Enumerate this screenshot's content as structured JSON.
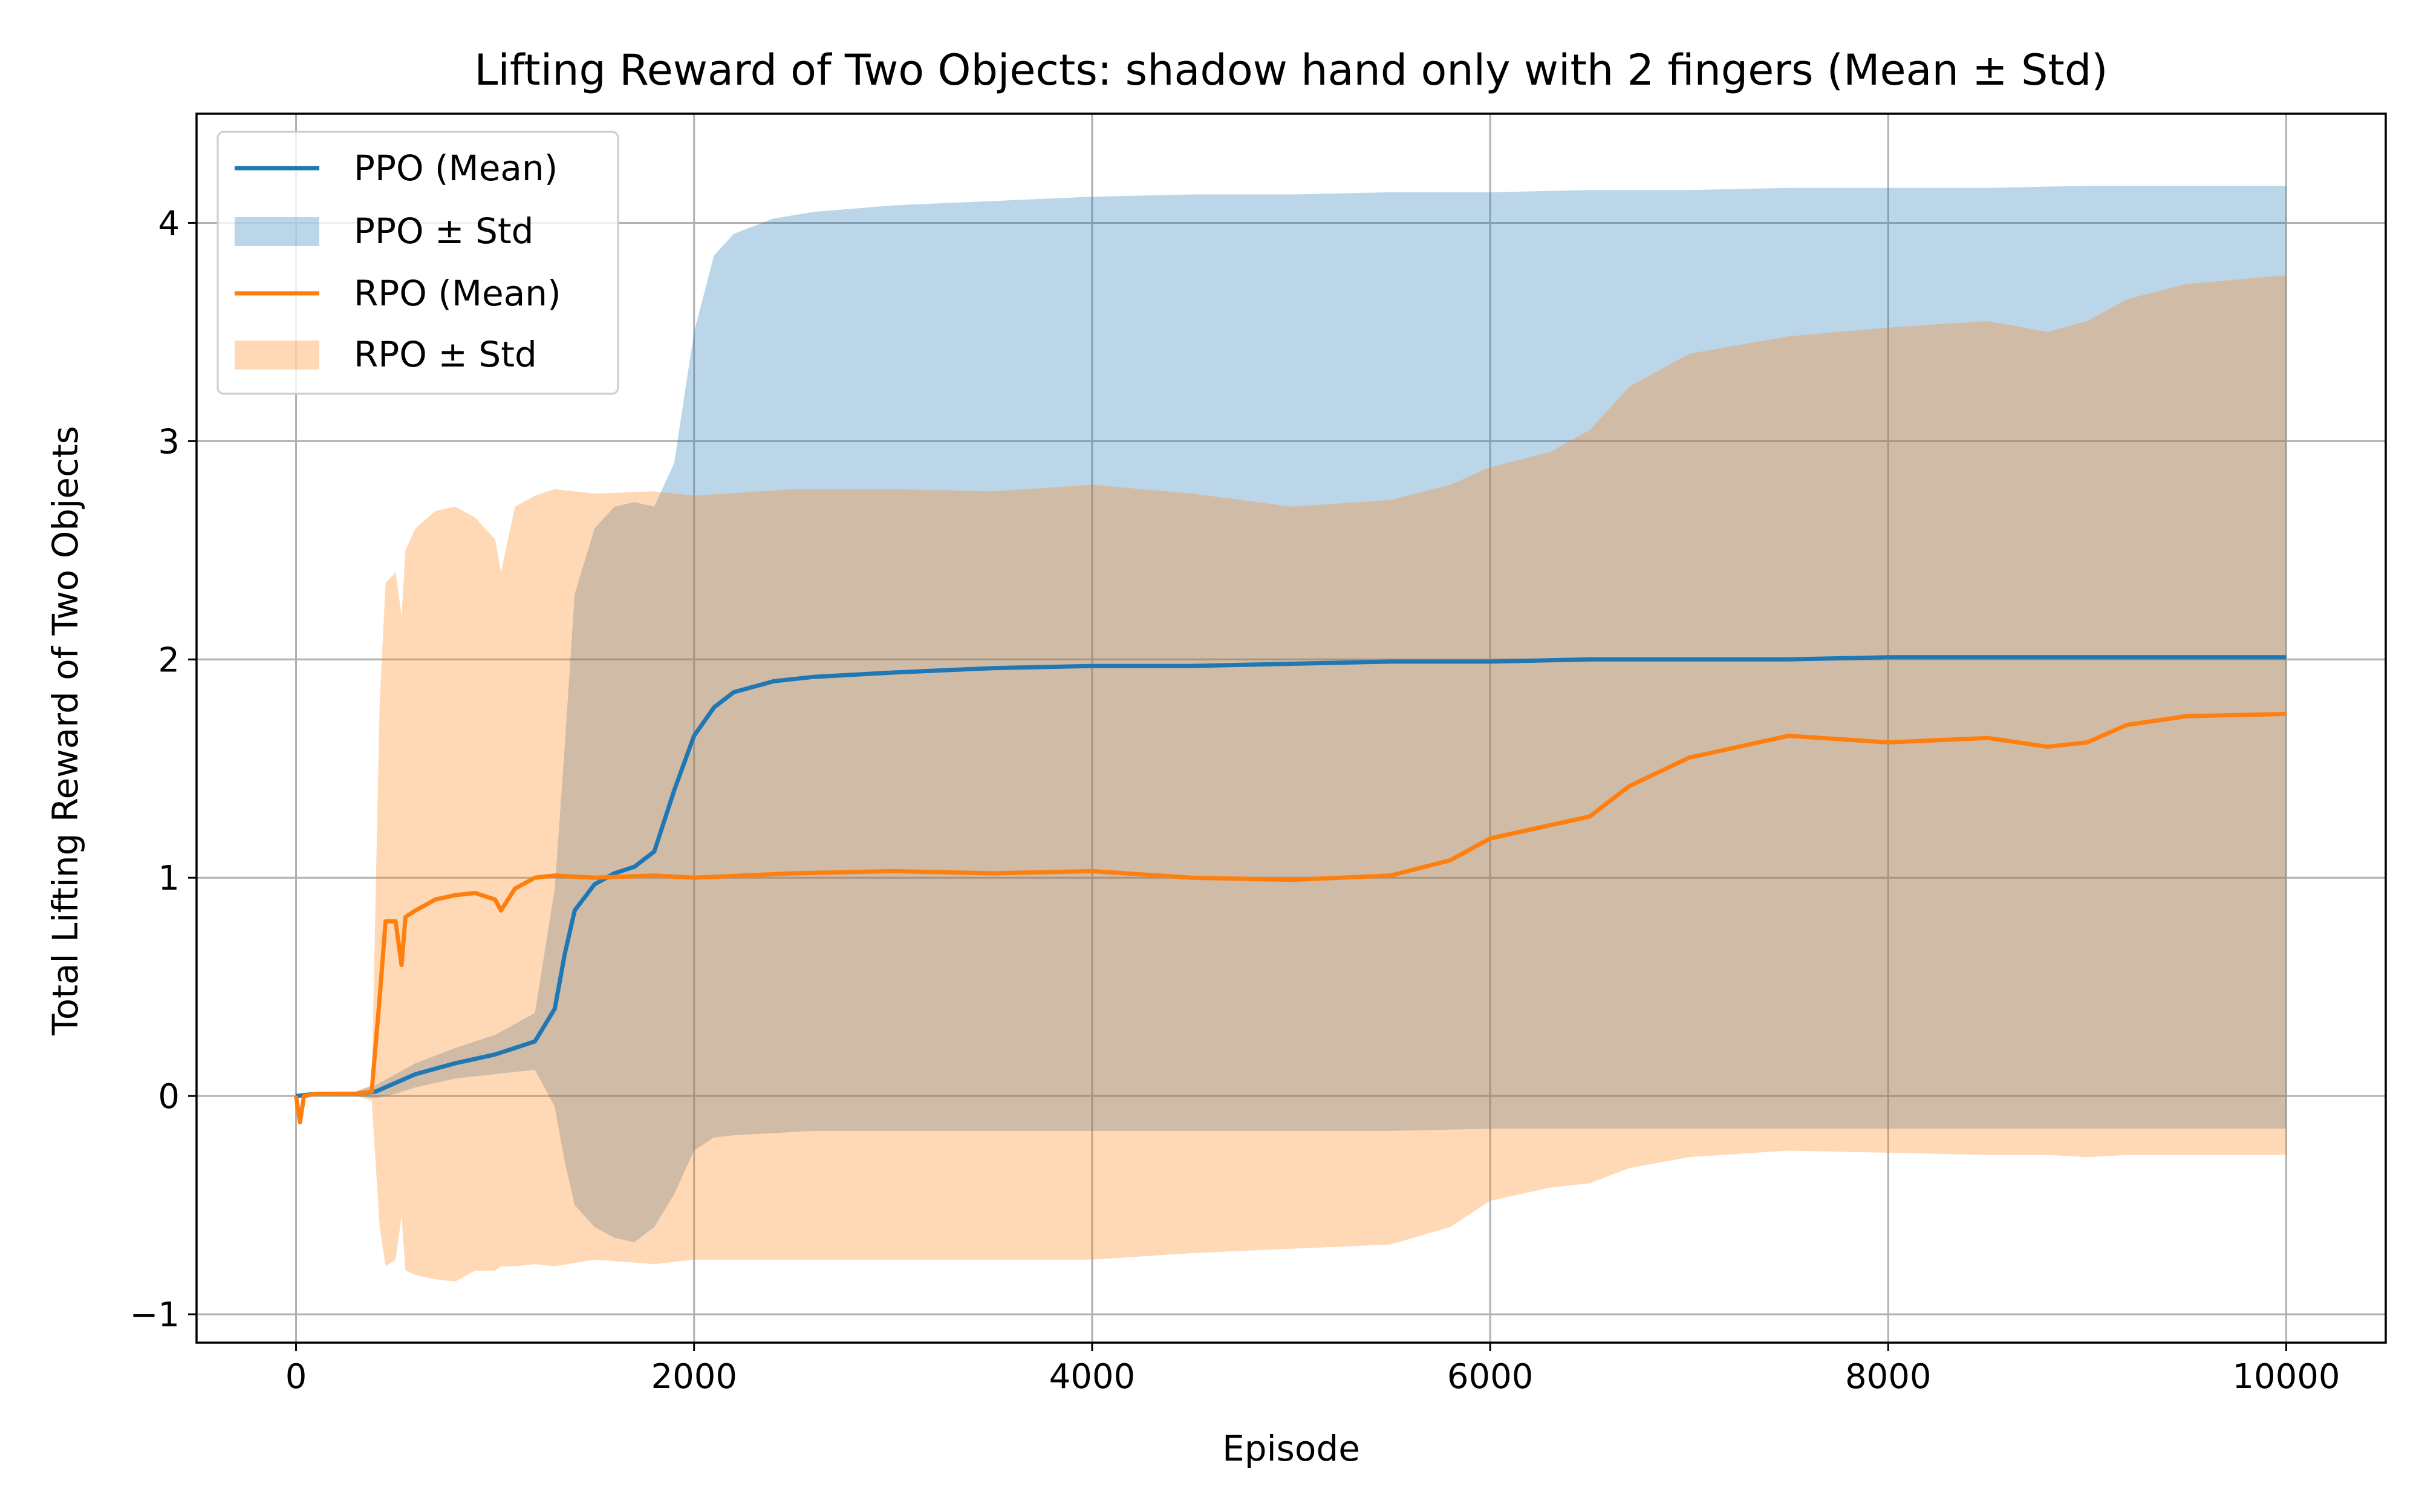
{
  "chart_data": {
    "type": "line",
    "title": "Lifting Reward of Two Objects: shadow hand only with 2 fingers (Mean ± Std)",
    "xlabel": "Episode",
    "ylabel": "Total Lifting Reward of Two Objects",
    "xlim": [
      -500,
      10500
    ],
    "ylim": [
      -1.13,
      4.5
    ],
    "xticks": [
      0,
      2000,
      4000,
      6000,
      8000,
      10000
    ],
    "xtick_labels": [
      "0",
      "2000",
      "4000",
      "6000",
      "8000",
      "10000"
    ],
    "yticks": [
      -1,
      0,
      1,
      2,
      3,
      4
    ],
    "ytick_labels": [
      "−1",
      "0",
      "1",
      "2",
      "3",
      "4"
    ],
    "grid": true,
    "legend_position": "top-left",
    "legend": [
      "PPO (Mean)",
      "PPO ± Std",
      "RPO (Mean)",
      "RPO ± Std"
    ],
    "series": [
      {
        "name": "PPO",
        "mean_label": "PPO (Mean)",
        "std_label": "PPO ± Std",
        "color": "#1f77b4",
        "fill_color": "#1f77b4",
        "fill_opacity": 0.3,
        "x": [
          0,
          100,
          200,
          300,
          400,
          500,
          600,
          800,
          1000,
          1200,
          1300,
          1350,
          1400,
          1500,
          1600,
          1700,
          1800,
          1900,
          2000,
          2100,
          2200,
          2400,
          2600,
          3000,
          3500,
          4000,
          4500,
          5000,
          5500,
          6000,
          6500,
          7000,
          7500,
          8000,
          8500,
          9000,
          9500,
          10000
        ],
        "mean": [
          0,
          0.01,
          0.01,
          0.01,
          0.02,
          0.06,
          0.1,
          0.15,
          0.19,
          0.25,
          0.4,
          0.65,
          0.85,
          0.97,
          1.02,
          1.05,
          1.12,
          1.4,
          1.65,
          1.78,
          1.85,
          1.9,
          1.92,
          1.94,
          1.96,
          1.97,
          1.97,
          1.98,
          1.99,
          1.99,
          2.0,
          2.0,
          2.0,
          2.01,
          2.01,
          2.01,
          2.01,
          2.01
        ],
        "upper": [
          0,
          0.01,
          0.02,
          0.02,
          0.05,
          0.1,
          0.15,
          0.22,
          0.28,
          0.38,
          0.95,
          1.6,
          2.3,
          2.6,
          2.7,
          2.72,
          2.7,
          2.9,
          3.5,
          3.85,
          3.95,
          4.02,
          4.05,
          4.08,
          4.1,
          4.12,
          4.13,
          4.13,
          4.14,
          4.14,
          4.15,
          4.15,
          4.16,
          4.16,
          4.16,
          4.17,
          4.17,
          4.17
        ],
        "lower": [
          0,
          0.0,
          0.0,
          0.0,
          -0.01,
          0.01,
          0.04,
          0.08,
          0.1,
          0.12,
          -0.05,
          -0.3,
          -0.5,
          -0.6,
          -0.65,
          -0.67,
          -0.6,
          -0.45,
          -0.25,
          -0.19,
          -0.18,
          -0.17,
          -0.16,
          -0.16,
          -0.16,
          -0.16,
          -0.16,
          -0.16,
          -0.16,
          -0.15,
          -0.15,
          -0.15,
          -0.15,
          -0.15,
          -0.15,
          -0.15,
          -0.15,
          -0.15
        ]
      },
      {
        "name": "RPO",
        "mean_label": "RPO (Mean)",
        "std_label": "RPO ± Std",
        "color": "#ff7f0e",
        "fill_color": "#ff7f0e",
        "fill_opacity": 0.3,
        "x": [
          0,
          20,
          40,
          100,
          200,
          300,
          380,
          420,
          450,
          500,
          530,
          550,
          600,
          700,
          800,
          900,
          1000,
          1030,
          1100,
          1200,
          1300,
          1500,
          1800,
          2000,
          2500,
          3000,
          3500,
          4000,
          4500,
          5000,
          5500,
          5800,
          6000,
          6300,
          6500,
          6700,
          7000,
          7500,
          8000,
          8500,
          8800,
          9000,
          9200,
          9500,
          10000
        ],
        "mean": [
          0,
          -0.12,
          0,
          0.01,
          0.01,
          0.01,
          0.02,
          0.45,
          0.8,
          0.8,
          0.6,
          0.82,
          0.85,
          0.9,
          0.92,
          0.93,
          0.9,
          0.85,
          0.95,
          1.0,
          1.01,
          1.0,
          1.01,
          1.0,
          1.02,
          1.03,
          1.02,
          1.03,
          1.0,
          0.99,
          1.01,
          1.08,
          1.18,
          1.24,
          1.28,
          1.42,
          1.55,
          1.65,
          1.62,
          1.64,
          1.6,
          1.62,
          1.7,
          1.74,
          1.75
        ],
        "upper": [
          0,
          0,
          0.01,
          0.02,
          0.02,
          0.02,
          0.05,
          1.8,
          2.35,
          2.4,
          2.2,
          2.5,
          2.6,
          2.68,
          2.7,
          2.65,
          2.55,
          2.4,
          2.7,
          2.75,
          2.78,
          2.76,
          2.77,
          2.75,
          2.78,
          2.78,
          2.77,
          2.8,
          2.76,
          2.7,
          2.73,
          2.8,
          2.88,
          2.95,
          3.05,
          3.25,
          3.4,
          3.48,
          3.52,
          3.55,
          3.5,
          3.55,
          3.65,
          3.72,
          3.76
        ],
        "lower": [
          0,
          0,
          0,
          0,
          0,
          0,
          -0.02,
          -0.6,
          -0.78,
          -0.75,
          -0.55,
          -0.8,
          -0.82,
          -0.84,
          -0.85,
          -0.8,
          -0.8,
          -0.78,
          -0.78,
          -0.77,
          -0.78,
          -0.75,
          -0.77,
          -0.75,
          -0.75,
          -0.75,
          -0.75,
          -0.75,
          -0.72,
          -0.7,
          -0.68,
          -0.6,
          -0.48,
          -0.42,
          -0.4,
          -0.33,
          -0.28,
          -0.25,
          -0.26,
          -0.27,
          -0.27,
          -0.28,
          -0.27,
          -0.27,
          -0.27
        ]
      }
    ]
  }
}
